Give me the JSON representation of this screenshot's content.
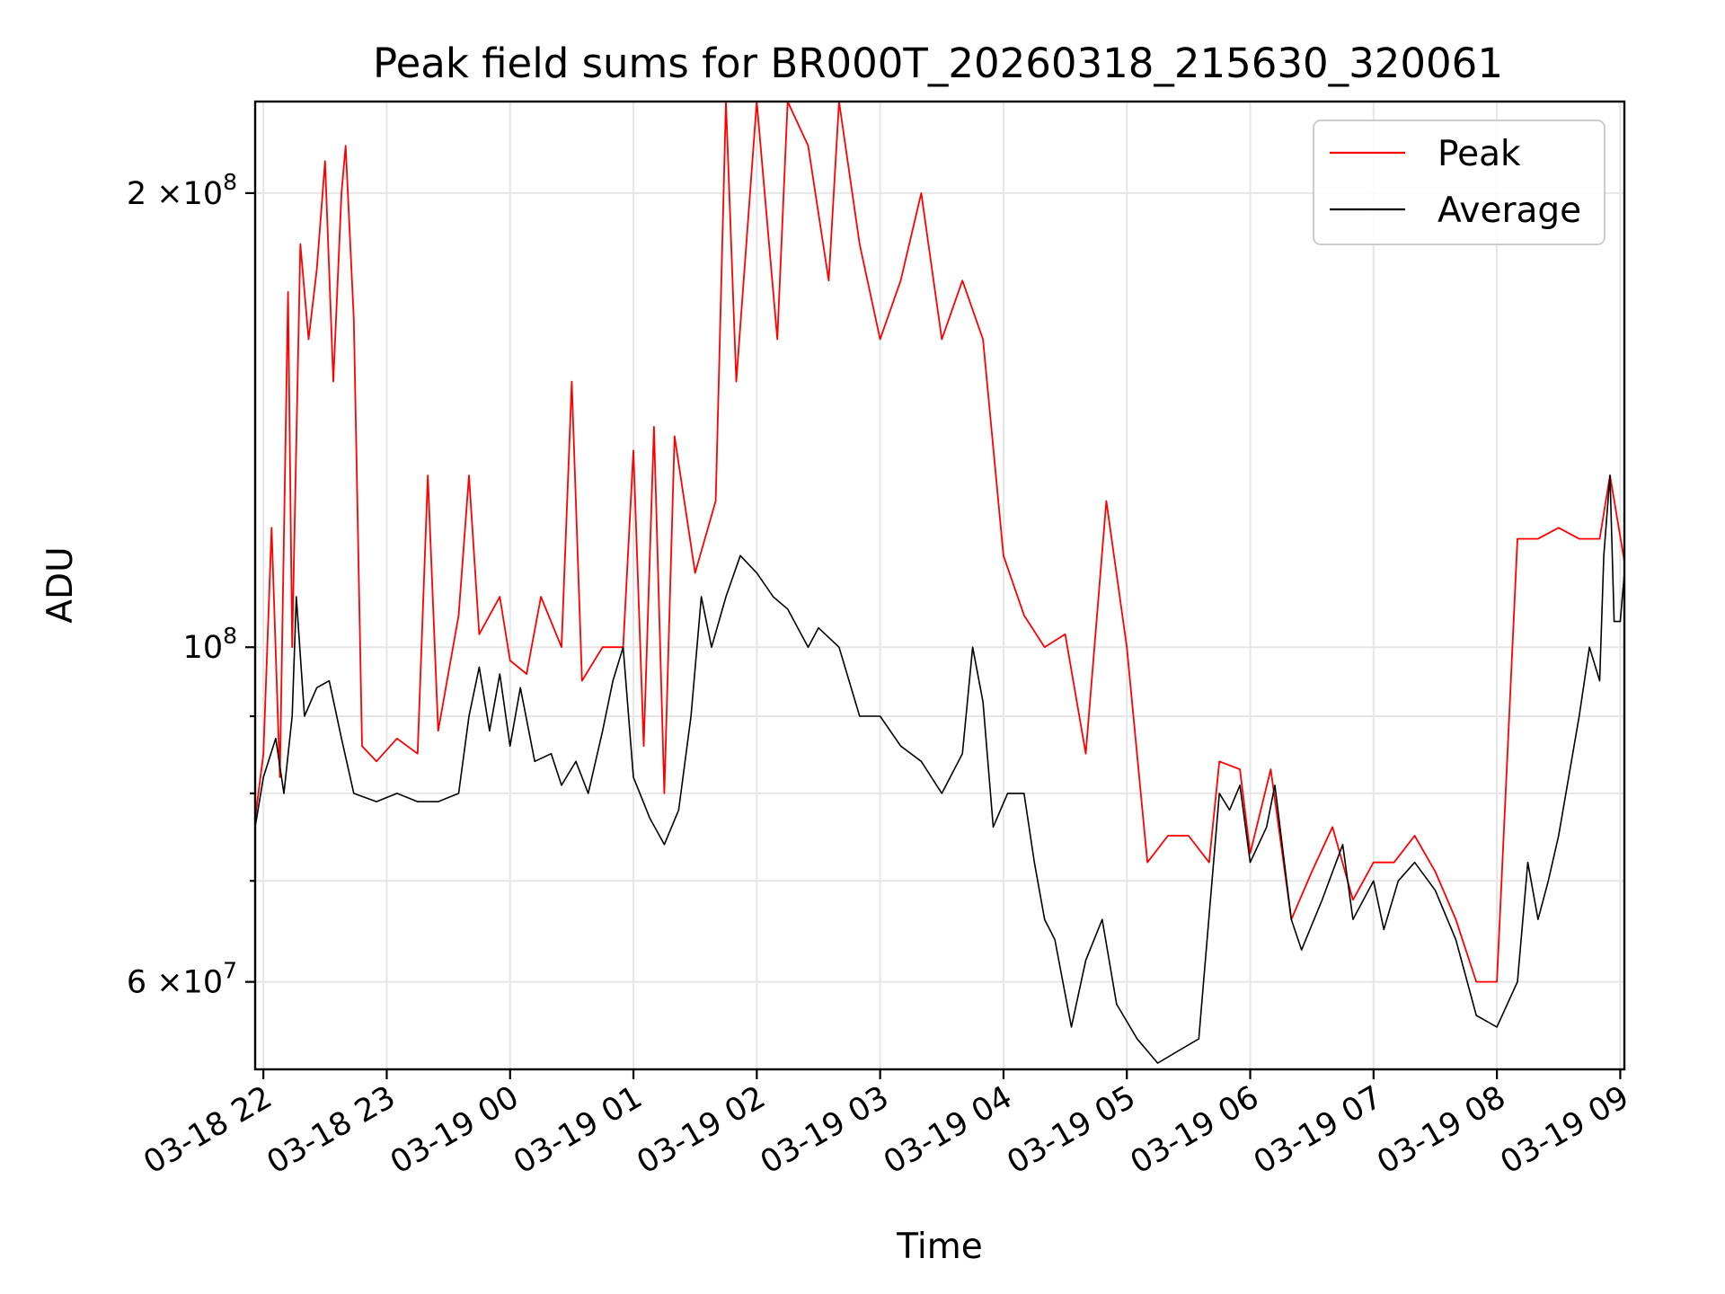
{
  "chart_data": {
    "type": "line",
    "title": "Peak field sums for BR000T_20260318_215630_320061",
    "xlabel": "Time",
    "ylabel": "ADU",
    "yscale": "log",
    "xlim": [
      "03-18 21:56",
      "03-19 09:02"
    ],
    "ylim": [
      52500000,
      230000000
    ],
    "x_ticks": [
      "03-18 22",
      "03-18 23",
      "03-19 00",
      "03-19 01",
      "03-19 02",
      "03-19 03",
      "03-19 04",
      "03-19 05",
      "03-19 06",
      "03-19 07",
      "03-19 08",
      "03-19 09"
    ],
    "y_major_ticks": [
      {
        "value": 60000000,
        "label_mantissa": "6",
        "label_exp": "7",
        "label_times": "×10"
      },
      {
        "value": 100000000,
        "label_mantissa": "",
        "label_exp": "8",
        "label_times": "10"
      },
      {
        "value": 200000000,
        "label_mantissa": "2",
        "label_exp": "8",
        "label_times": "×10"
      }
    ],
    "y_minor_ticks": [
      70000000,
      80000000,
      90000000
    ],
    "grid": true,
    "legend_position": "upper right",
    "series": [
      {
        "name": "Peak",
        "color": "#ff0000",
        "points": [
          [
            "03-18 21:56",
            77000000
          ],
          [
            "03-18 22:00",
            85000000
          ],
          [
            "03-18 22:04",
            120000000
          ],
          [
            "03-18 22:08",
            82000000
          ],
          [
            "03-18 22:12",
            172000000
          ],
          [
            "03-18 22:14",
            100000000
          ],
          [
            "03-18 22:18",
            185000000
          ],
          [
            "03-18 22:22",
            160000000
          ],
          [
            "03-18 22:26",
            178000000
          ],
          [
            "03-18 22:30",
            210000000
          ],
          [
            "03-18 22:34",
            150000000
          ],
          [
            "03-18 22:38",
            200000000
          ],
          [
            "03-18 22:40",
            215000000
          ],
          [
            "03-18 22:44",
            165000000
          ],
          [
            "03-18 22:48",
            86000000
          ],
          [
            "03-18 22:55",
            84000000
          ],
          [
            "03-18 23:05",
            87000000
          ],
          [
            "03-18 23:15",
            85000000
          ],
          [
            "03-18 23:20",
            130000000
          ],
          [
            "03-18 23:25",
            88000000
          ],
          [
            "03-18 23:35",
            105000000
          ],
          [
            "03-18 23:40",
            130000000
          ],
          [
            "03-18 23:45",
            102000000
          ],
          [
            "03-18 23:55",
            108000000
          ],
          [
            "03-19 00:00",
            98000000
          ],
          [
            "03-19 00:08",
            96000000
          ],
          [
            "03-19 00:15",
            108000000
          ],
          [
            "03-19 00:25",
            100000000
          ],
          [
            "03-19 00:30",
            150000000
          ],
          [
            "03-19 00:35",
            95000000
          ],
          [
            "03-19 00:45",
            100000000
          ],
          [
            "03-19 00:50",
            100000000
          ],
          [
            "03-19 00:55",
            100000000
          ],
          [
            "03-19 01:00",
            135000000
          ],
          [
            "03-19 01:05",
            86000000
          ],
          [
            "03-19 01:10",
            140000000
          ],
          [
            "03-19 01:15",
            80000000
          ],
          [
            "03-19 01:20",
            138000000
          ],
          [
            "03-19 01:30",
            112000000
          ],
          [
            "03-19 01:40",
            125000000
          ],
          [
            "03-19 01:45",
            230000000
          ],
          [
            "03-19 01:50",
            150000000
          ],
          [
            "03-19 02:00",
            230000000
          ],
          [
            "03-19 02:10",
            160000000
          ],
          [
            "03-19 02:15",
            230000000
          ],
          [
            "03-19 02:25",
            215000000
          ],
          [
            "03-19 02:35",
            175000000
          ],
          [
            "03-19 02:40",
            230000000
          ],
          [
            "03-19 02:50",
            185000000
          ],
          [
            "03-19 03:00",
            160000000
          ],
          [
            "03-19 03:10",
            175000000
          ],
          [
            "03-19 03:20",
            200000000
          ],
          [
            "03-19 03:30",
            160000000
          ],
          [
            "03-19 03:40",
            175000000
          ],
          [
            "03-19 03:50",
            160000000
          ],
          [
            "03-19 04:00",
            115000000
          ],
          [
            "03-19 04:10",
            105000000
          ],
          [
            "03-19 04:20",
            100000000
          ],
          [
            "03-19 04:30",
            102000000
          ],
          [
            "03-19 04:40",
            85000000
          ],
          [
            "03-19 04:50",
            125000000
          ],
          [
            "03-19 05:00",
            100000000
          ],
          [
            "03-19 05:10",
            72000000
          ],
          [
            "03-19 05:20",
            75000000
          ],
          [
            "03-19 05:30",
            75000000
          ],
          [
            "03-19 05:40",
            72000000
          ],
          [
            "03-19 05:45",
            84000000
          ],
          [
            "03-19 05:55",
            83000000
          ],
          [
            "03-19 06:00",
            73000000
          ],
          [
            "03-19 06:10",
            83000000
          ],
          [
            "03-19 06:20",
            66000000
          ],
          [
            "03-19 06:30",
            71000000
          ],
          [
            "03-19 06:40",
            76000000
          ],
          [
            "03-19 06:50",
            68000000
          ],
          [
            "03-19 07:00",
            72000000
          ],
          [
            "03-19 07:10",
            72000000
          ],
          [
            "03-19 07:20",
            75000000
          ],
          [
            "03-19 07:30",
            71000000
          ],
          [
            "03-19 07:40",
            66000000
          ],
          [
            "03-19 07:50",
            60000000
          ],
          [
            "03-19 08:00",
            60000000
          ],
          [
            "03-19 08:10",
            118000000
          ],
          [
            "03-19 08:20",
            118000000
          ],
          [
            "03-19 08:30",
            120000000
          ],
          [
            "03-19 08:40",
            118000000
          ],
          [
            "03-19 08:50",
            118000000
          ],
          [
            "03-19 08:55",
            130000000
          ],
          [
            "03-19 09:02",
            114000000
          ]
        ]
      },
      {
        "name": "Average",
        "color": "#000000",
        "points": [
          [
            "03-18 21:56",
            76000000
          ],
          [
            "03-18 22:00",
            82000000
          ],
          [
            "03-18 22:06",
            87000000
          ],
          [
            "03-18 22:10",
            80000000
          ],
          [
            "03-18 22:14",
            90000000
          ],
          [
            "03-18 22:16",
            108000000
          ],
          [
            "03-18 22:20",
            90000000
          ],
          [
            "03-18 22:26",
            94000000
          ],
          [
            "03-18 22:32",
            95000000
          ],
          [
            "03-18 22:38",
            87000000
          ],
          [
            "03-18 22:44",
            80000000
          ],
          [
            "03-18 22:55",
            79000000
          ],
          [
            "03-18 23:05",
            80000000
          ],
          [
            "03-18 23:15",
            79000000
          ],
          [
            "03-18 23:25",
            79000000
          ],
          [
            "03-18 23:35",
            80000000
          ],
          [
            "03-18 23:40",
            90000000
          ],
          [
            "03-18 23:45",
            97000000
          ],
          [
            "03-18 23:50",
            88000000
          ],
          [
            "03-18 23:55",
            96000000
          ],
          [
            "03-19 00:00",
            86000000
          ],
          [
            "03-19 00:05",
            94000000
          ],
          [
            "03-19 00:12",
            84000000
          ],
          [
            "03-19 00:20",
            85000000
          ],
          [
            "03-19 00:25",
            81000000
          ],
          [
            "03-19 00:32",
            84000000
          ],
          [
            "03-19 00:38",
            80000000
          ],
          [
            "03-19 00:45",
            88000000
          ],
          [
            "03-19 00:50",
            95000000
          ],
          [
            "03-19 00:55",
            100000000
          ],
          [
            "03-19 01:00",
            82000000
          ],
          [
            "03-19 01:08",
            77000000
          ],
          [
            "03-19 01:15",
            74000000
          ],
          [
            "03-19 01:22",
            78000000
          ],
          [
            "03-19 01:28",
            90000000
          ],
          [
            "03-19 01:33",
            108000000
          ],
          [
            "03-19 01:38",
            100000000
          ],
          [
            "03-19 01:45",
            108000000
          ],
          [
            "03-19 01:52",
            115000000
          ],
          [
            "03-19 02:00",
            112000000
          ],
          [
            "03-19 02:08",
            108000000
          ],
          [
            "03-19 02:15",
            106000000
          ],
          [
            "03-19 02:25",
            100000000
          ],
          [
            "03-19 02:30",
            103000000
          ],
          [
            "03-19 02:40",
            100000000
          ],
          [
            "03-19 02:50",
            90000000
          ],
          [
            "03-19 03:00",
            90000000
          ],
          [
            "03-19 03:10",
            86000000
          ],
          [
            "03-19 03:20",
            84000000
          ],
          [
            "03-19 03:30",
            80000000
          ],
          [
            "03-19 03:40",
            85000000
          ],
          [
            "03-19 03:45",
            100000000
          ],
          [
            "03-19 03:50",
            92000000
          ],
          [
            "03-19 03:55",
            76000000
          ],
          [
            "03-19 04:02",
            80000000
          ],
          [
            "03-19 04:10",
            80000000
          ],
          [
            "03-19 04:15",
            72000000
          ],
          [
            "03-19 04:20",
            66000000
          ],
          [
            "03-19 04:25",
            64000000
          ],
          [
            "03-19 04:33",
            56000000
          ],
          [
            "03-19 04:40",
            62000000
          ],
          [
            "03-19 04:48",
            66000000
          ],
          [
            "03-19 04:55",
            58000000
          ],
          [
            "03-19 05:05",
            55000000
          ],
          [
            "03-19 05:15",
            53000000
          ],
          [
            "03-19 05:25",
            54000000
          ],
          [
            "03-19 05:35",
            55000000
          ],
          [
            "03-19 05:45",
            80000000
          ],
          [
            "03-19 05:50",
            78000000
          ],
          [
            "03-19 05:55",
            81000000
          ],
          [
            "03-19 06:00",
            72000000
          ],
          [
            "03-19 06:08",
            76000000
          ],
          [
            "03-19 06:12",
            81000000
          ],
          [
            "03-19 06:20",
            66000000
          ],
          [
            "03-19 06:25",
            63000000
          ],
          [
            "03-19 06:35",
            68000000
          ],
          [
            "03-19 06:45",
            74000000
          ],
          [
            "03-19 06:50",
            66000000
          ],
          [
            "03-19 07:00",
            70000000
          ],
          [
            "03-19 07:05",
            65000000
          ],
          [
            "03-19 07:12",
            70000000
          ],
          [
            "03-19 07:20",
            72000000
          ],
          [
            "03-19 07:30",
            69000000
          ],
          [
            "03-19 07:40",
            64000000
          ],
          [
            "03-19 07:50",
            57000000
          ],
          [
            "03-19 08:00",
            56000000
          ],
          [
            "03-19 08:10",
            60000000
          ],
          [
            "03-19 08:15",
            72000000
          ],
          [
            "03-19 08:20",
            66000000
          ],
          [
            "03-19 08:25",
            70000000
          ],
          [
            "03-19 08:30",
            75000000
          ],
          [
            "03-19 08:40",
            90000000
          ],
          [
            "03-19 08:45",
            100000000
          ],
          [
            "03-19 08:50",
            95000000
          ],
          [
            "03-19 08:52",
            115000000
          ],
          [
            "03-19 08:55",
            130000000
          ],
          [
            "03-19 08:57",
            104000000
          ],
          [
            "03-19 09:00",
            104000000
          ],
          [
            "03-19 09:02",
            112000000
          ]
        ]
      }
    ]
  }
}
